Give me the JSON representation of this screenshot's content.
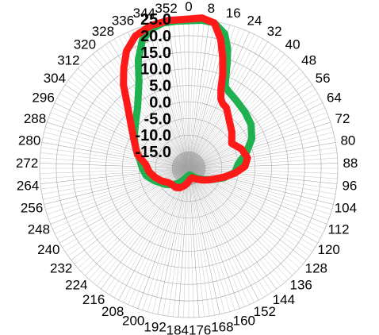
{
  "chart_data": {
    "type": "polar-line",
    "title": "",
    "angle_ticks": [
      "0",
      "8",
      "16",
      "24",
      "32",
      "40",
      "48",
      "56",
      "64",
      "72",
      "80",
      "88",
      "96",
      "104",
      "112",
      "120",
      "128",
      "136",
      "144",
      "152",
      "160",
      "168",
      "176",
      "184",
      "192",
      "200",
      "208",
      "216",
      "224",
      "232",
      "240",
      "248",
      "256",
      "264",
      "272",
      "280",
      "288",
      "296",
      "304",
      "312",
      "320",
      "328",
      "336",
      "344",
      "352"
    ],
    "radial_ticks": [
      "-15.0",
      "-10.0",
      "-5.0",
      "0.0",
      "5.0",
      "10.0",
      "15.0",
      "20.0",
      "25.0"
    ],
    "radial_range": [
      -20,
      25
    ],
    "grid": true,
    "series": [
      {
        "color": "#1fb050",
        "points": [
          [
            0,
            24.5
          ],
          [
            5,
            24.8
          ],
          [
            10,
            24.5
          ],
          [
            15,
            22
          ],
          [
            18,
            18
          ],
          [
            20,
            14
          ],
          [
            22,
            10
          ],
          [
            24,
            7
          ],
          [
            28,
            6
          ],
          [
            35,
            5
          ],
          [
            45,
            4
          ],
          [
            55,
            3
          ],
          [
            65,
            1
          ],
          [
            75,
            -2
          ],
          [
            85,
            -5
          ],
          [
            95,
            -6
          ],
          [
            105,
            -9
          ],
          [
            115,
            -12
          ],
          [
            125,
            -14
          ],
          [
            140,
            -16
          ],
          [
            150,
            -17
          ],
          [
            170,
            -18
          ],
          [
            190,
            -17.5
          ],
          [
            205,
            -16
          ],
          [
            215,
            -14.5
          ],
          [
            225,
            -13
          ],
          [
            235,
            -11.5
          ],
          [
            250,
            -9
          ],
          [
            260,
            -7
          ],
          [
            270,
            -6
          ],
          [
            280,
            -5
          ],
          [
            290,
            -3
          ],
          [
            300,
            -1
          ],
          [
            310,
            1
          ],
          [
            320,
            4
          ],
          [
            330,
            10
          ],
          [
            335,
            16
          ],
          [
            340,
            21
          ],
          [
            345,
            23.5
          ],
          [
            350,
            24.5
          ],
          [
            355,
            24.5
          ],
          [
            360,
            24.5
          ]
        ]
      },
      {
        "color": "#ff1a1a",
        "points": [
          [
            0,
            25
          ],
          [
            5,
            25.5
          ],
          [
            10,
            24.5
          ],
          [
            14,
            20
          ],
          [
            17,
            15
          ],
          [
            20,
            10
          ],
          [
            22,
            6
          ],
          [
            25,
            3
          ],
          [
            28,
            2
          ],
          [
            32,
            1.5
          ],
          [
            40,
            -1
          ],
          [
            50,
            -3
          ],
          [
            60,
            -5
          ],
          [
            70,
            -3
          ],
          [
            80,
            -2
          ],
          [
            88,
            -3
          ],
          [
            96,
            -6
          ],
          [
            104,
            -9
          ],
          [
            110,
            -11
          ],
          [
            120,
            -13
          ],
          [
            130,
            -14.5
          ],
          [
            145,
            -16
          ],
          [
            160,
            -17
          ],
          [
            175,
            -16.5
          ],
          [
            185,
            -15.5
          ],
          [
            195,
            -14.5
          ],
          [
            205,
            -13.5
          ],
          [
            215,
            -13
          ],
          [
            225,
            -13
          ],
          [
            235,
            -12.5
          ],
          [
            245,
            -11
          ],
          [
            255,
            -9.5
          ],
          [
            265,
            -8
          ],
          [
            275,
            -7
          ],
          [
            285,
            -4
          ],
          [
            295,
            -2
          ],
          [
            305,
            1
          ],
          [
            315,
            6
          ],
          [
            322,
            12
          ],
          [
            327,
            16
          ],
          [
            332,
            20
          ],
          [
            338,
            23
          ],
          [
            345,
            24.5
          ],
          [
            352,
            25
          ],
          [
            360,
            25
          ]
        ]
      }
    ]
  }
}
